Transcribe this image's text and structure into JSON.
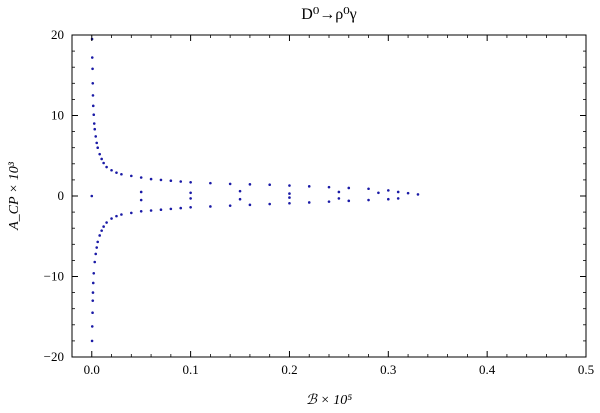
{
  "chart_data": {
    "type": "scatter",
    "title": "D⁰→ρ⁰γ",
    "xlabel": "ℬ × 10⁵",
    "ylabel": "A_CP × 10³",
    "xlim": [
      -0.02,
      0.5
    ],
    "ylim": [
      -20,
      20
    ],
    "x_ticks": [
      0.0,
      0.1,
      0.2,
      0.3,
      0.4,
      0.5
    ],
    "x_tick_labels": [
      "0.0",
      "0.1",
      "0.2",
      "0.3",
      "0.4",
      "0.5"
    ],
    "y_ticks": [
      -20,
      -10,
      0,
      10,
      20
    ],
    "y_tick_labels": [
      "−20",
      "−10",
      "0",
      "10",
      "20"
    ],
    "grid": false,
    "frame": true,
    "marker_color": "#1a1aa6",
    "points": [
      [
        0.0003,
        19.5
      ],
      [
        0.0005,
        17.2
      ],
      [
        0.0008,
        15.8
      ],
      [
        0.001,
        14.0
      ],
      [
        0.0012,
        12.5
      ],
      [
        0.0015,
        11.2
      ],
      [
        0.002,
        10.1
      ],
      [
        0.0025,
        9.0
      ],
      [
        0.003,
        8.3
      ],
      [
        0.004,
        7.4
      ],
      [
        0.005,
        6.6
      ],
      [
        0.006,
        6.0
      ],
      [
        0.008,
        5.2
      ],
      [
        0.01,
        4.6
      ],
      [
        0.012,
        4.1
      ],
      [
        0.015,
        3.6
      ],
      [
        0.02,
        3.2
      ],
      [
        0.025,
        2.9
      ],
      [
        0.03,
        2.7
      ],
      [
        0.04,
        2.5
      ],
      [
        0.05,
        2.3
      ],
      [
        0.06,
        2.1
      ],
      [
        0.07,
        2.0
      ],
      [
        0.08,
        1.9
      ],
      [
        0.09,
        1.8
      ],
      [
        0.1,
        1.7
      ],
      [
        0.12,
        1.6
      ],
      [
        0.14,
        1.5
      ],
      [
        0.16,
        1.45
      ],
      [
        0.18,
        1.4
      ],
      [
        0.2,
        1.3
      ],
      [
        0.22,
        1.2
      ],
      [
        0.24,
        1.1
      ],
      [
        0.26,
        1.0
      ],
      [
        0.28,
        0.9
      ],
      [
        0.3,
        0.7
      ],
      [
        0.31,
        0.5
      ],
      [
        0.32,
        0.35
      ],
      [
        0.33,
        0.2
      ],
      [
        0.0003,
        -18.0
      ],
      [
        0.0005,
        -16.2
      ],
      [
        0.0008,
        -14.5
      ],
      [
        0.001,
        -13.0
      ],
      [
        0.0012,
        -12.0
      ],
      [
        0.0015,
        -10.8
      ],
      [
        0.002,
        -9.6
      ],
      [
        0.003,
        -8.2
      ],
      [
        0.004,
        -7.2
      ],
      [
        0.005,
        -6.4
      ],
      [
        0.006,
        -5.7
      ],
      [
        0.008,
        -4.9
      ],
      [
        0.01,
        -4.3
      ],
      [
        0.012,
        -3.8
      ],
      [
        0.015,
        -3.3
      ],
      [
        0.02,
        -2.8
      ],
      [
        0.025,
        -2.5
      ],
      [
        0.03,
        -2.3
      ],
      [
        0.04,
        -2.1
      ],
      [
        0.05,
        -1.9
      ],
      [
        0.06,
        -1.8
      ],
      [
        0.07,
        -1.7
      ],
      [
        0.08,
        -1.6
      ],
      [
        0.09,
        -1.5
      ],
      [
        0.1,
        -1.4
      ],
      [
        0.12,
        -1.3
      ],
      [
        0.14,
        -1.2
      ],
      [
        0.16,
        -1.1
      ],
      [
        0.18,
        -1.0
      ],
      [
        0.2,
        -0.9
      ],
      [
        0.22,
        -0.8
      ],
      [
        0.24,
        -0.7
      ],
      [
        0.26,
        -0.6
      ],
      [
        0.28,
        -0.5
      ],
      [
        0.3,
        -0.4
      ],
      [
        0.31,
        -0.3
      ],
      [
        0.0,
        0.0
      ],
      [
        0.05,
        0.5
      ],
      [
        0.05,
        -0.5
      ],
      [
        0.1,
        0.4
      ],
      [
        0.1,
        -0.3
      ],
      [
        0.15,
        0.6
      ],
      [
        0.15,
        -0.4
      ],
      [
        0.2,
        0.3
      ],
      [
        0.2,
        -0.2
      ],
      [
        0.25,
        0.5
      ],
      [
        0.25,
        -0.3
      ],
      [
        0.29,
        0.4
      ]
    ]
  }
}
